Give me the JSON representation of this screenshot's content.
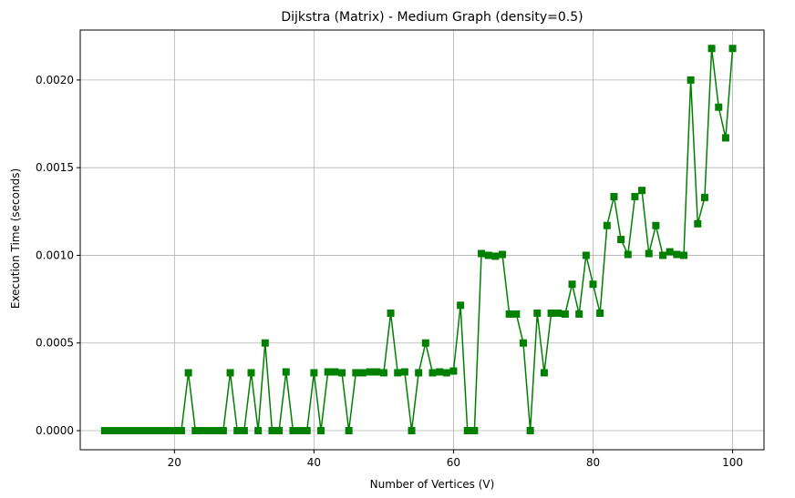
{
  "chart_data": {
    "type": "line",
    "title": "Dijkstra (Matrix) - Medium Graph (density=0.5)",
    "xlabel": "Number of Vertices (V)",
    "ylabel": "Execution Time (seconds)",
    "xlim": [
      6.5,
      104.5
    ],
    "ylim": [
      -0.000109,
      0.002285
    ],
    "xticks": [
      20,
      40,
      60,
      80,
      100
    ],
    "yticks": [
      0.0,
      0.0005,
      0.001,
      0.0015,
      0.002
    ],
    "xtick_labels": [
      "20",
      "40",
      "60",
      "80",
      "100"
    ],
    "ytick_labels": [
      "0.0000",
      "0.0005",
      "0.0010",
      "0.0015",
      "0.0020"
    ],
    "grid": true,
    "marker": "square",
    "color": "#008000",
    "series": [
      {
        "x": [
          10,
          11,
          12,
          13,
          14,
          15,
          16,
          17,
          18,
          19,
          20,
          21,
          22,
          23,
          24,
          25,
          26,
          27,
          28,
          29,
          30,
          31,
          32,
          33,
          34,
          35,
          36,
          37,
          38,
          39,
          40,
          41,
          42,
          43,
          44,
          45,
          46,
          47,
          48,
          49,
          50,
          51,
          52,
          53,
          54,
          55,
          56,
          57,
          58,
          59,
          60,
          61,
          62,
          63,
          64,
          65,
          66,
          67,
          68,
          69,
          70,
          71,
          72,
          73,
          74,
          75,
          76,
          77,
          78,
          79,
          80,
          81,
          82,
          83,
          84,
          85,
          86,
          87,
          88,
          89,
          90,
          91,
          92,
          93,
          94,
          95,
          96,
          97,
          98,
          99,
          100
        ],
        "values": [
          0,
          0,
          0,
          0,
          0,
          0,
          0,
          0,
          0,
          0,
          0,
          0,
          0.00033,
          0,
          0,
          0,
          0,
          0,
          0.00033,
          0,
          0,
          0.00033,
          0,
          0.0005,
          0,
          0,
          0.000335,
          0,
          0,
          0,
          0.00033,
          0,
          0.000335,
          0.000335,
          0.00033,
          0,
          0.00033,
          0.00033,
          0.000335,
          0.000335,
          0.00033,
          0.00067,
          0.00033,
          0.000335,
          0,
          0.00033,
          0.0005,
          0.00033,
          0.000335,
          0.00033,
          0.00034,
          0.000715,
          0,
          0,
          0.00101,
          0.001,
          0.000995,
          0.001005,
          0.000665,
          0.000665,
          0.0005,
          0,
          0.00067,
          0.00033,
          0.00067,
          0.00067,
          0.000665,
          0.000835,
          0.000665,
          0.001,
          0.000835,
          0.00067,
          0.00117,
          0.001335,
          0.00109,
          0.001005,
          0.001335,
          0.00137,
          0.00101,
          0.00117,
          0.001,
          0.00102,
          0.001005,
          0.001,
          0.002,
          0.00118,
          0.00133,
          0.00218,
          0.001845,
          0.00167,
          0.00218
        ]
      }
    ]
  }
}
